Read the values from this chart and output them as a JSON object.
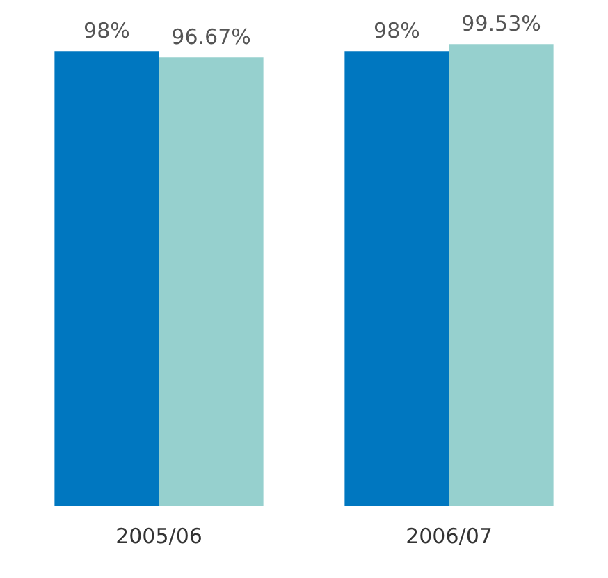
{
  "chart_data": {
    "type": "bar",
    "categories": [
      "2005/06",
      "2006/07"
    ],
    "series": [
      {
        "color": "#0077c0",
        "values": [
          98,
          98
        ],
        "value_labels": [
          "98%",
          "98%"
        ]
      },
      {
        "color": "#96d0ce",
        "values": [
          96.67,
          99.53
        ],
        "value_labels": [
          "96.67%",
          "99.53%"
        ]
      }
    ],
    "ylim": [
      0,
      100
    ],
    "tick_labels": "x",
    "grid": false,
    "legend": false
  }
}
